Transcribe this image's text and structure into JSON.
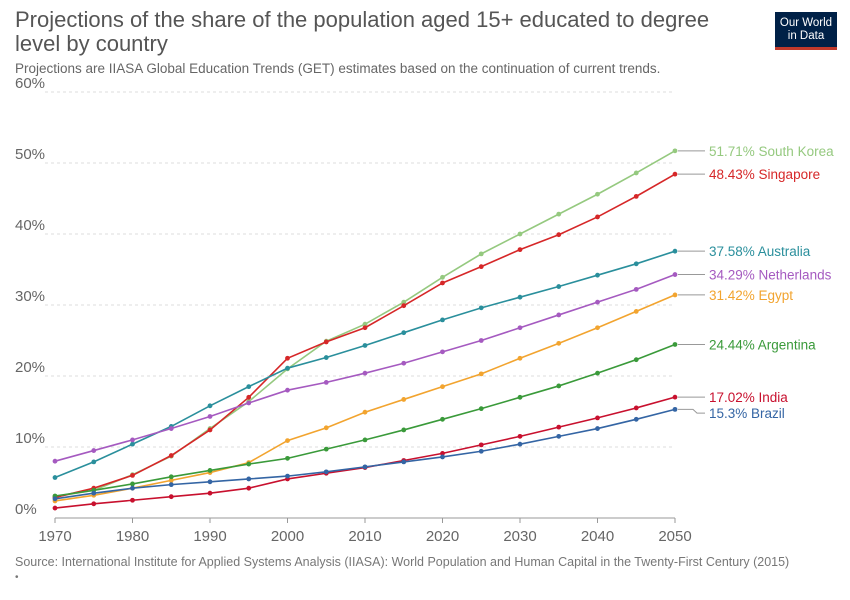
{
  "header": {
    "title": "Projections of the share of the population aged 15+ educated to degree level by country",
    "subtitle": "Projections are IIASA Global Education Trends (GET) estimates based on the continuation of current trends.",
    "logo_text": "Our World in Data",
    "logo_bg": "#002147",
    "logo_accent": "#c0392b"
  },
  "footer": {
    "source": "Source: International Institute for Applied Systems Analysis (IIASA): World Population and Human Capital in the Twenty-First Century (2015)",
    "bullet": "•"
  },
  "chart_data": {
    "type": "line",
    "title": "Projections of the share of the population aged 15+ educated to degree level by country",
    "x": [
      1970,
      1975,
      1980,
      1985,
      1990,
      1995,
      2000,
      2005,
      2010,
      2015,
      2020,
      2025,
      2030,
      2035,
      2040,
      2045,
      2050
    ],
    "xticks": [
      1970,
      1980,
      1990,
      2000,
      2010,
      2020,
      2030,
      2040,
      2050
    ],
    "xlim": [
      1970,
      2050
    ],
    "ylim": [
      0,
      60
    ],
    "yticks": [
      0,
      10,
      20,
      30,
      40,
      50,
      60
    ],
    "ytick_labels": [
      "0%",
      "10%",
      "20%",
      "30%",
      "40%",
      "50%",
      "60%"
    ],
    "grid": true,
    "legend": "end-of-line labels",
    "series": [
      {
        "name": "South Korea",
        "end_label": "51.71% South Korea",
        "color": "#95c97f",
        "values": [
          3.0,
          3.9,
          6.1,
          8.7,
          12.6,
          16.4,
          21.0,
          24.9,
          27.3,
          30.4,
          33.9,
          37.2,
          40.0,
          42.8,
          45.6,
          48.6,
          51.71
        ]
      },
      {
        "name": "Singapore",
        "end_label": "48.43% Singapore",
        "color": "#d62728",
        "values": [
          2.9,
          4.2,
          6.0,
          8.8,
          12.4,
          17.0,
          22.5,
          24.8,
          26.8,
          29.9,
          33.1,
          35.4,
          37.8,
          39.9,
          42.4,
          45.3,
          48.43
        ]
      },
      {
        "name": "Australia",
        "end_label": "37.58% Australia",
        "color": "#2a8f9c",
        "values": [
          5.7,
          7.9,
          10.4,
          12.9,
          15.8,
          18.5,
          21.1,
          22.6,
          24.3,
          26.1,
          27.9,
          29.6,
          31.1,
          32.6,
          34.2,
          35.8,
          37.58
        ]
      },
      {
        "name": "Netherlands",
        "end_label": "34.29% Netherlands",
        "color": "#a55ac0",
        "values": [
          8.0,
          9.5,
          11.0,
          12.6,
          14.3,
          16.2,
          18.0,
          19.1,
          20.4,
          21.8,
          23.4,
          25.0,
          26.8,
          28.6,
          30.4,
          32.2,
          34.29
        ]
      },
      {
        "name": "Egypt",
        "end_label": "31.42% Egypt",
        "color": "#f2a42f",
        "values": [
          2.4,
          3.2,
          4.2,
          5.3,
          6.4,
          7.8,
          10.9,
          12.7,
          14.9,
          16.7,
          18.5,
          20.3,
          22.5,
          24.6,
          26.8,
          29.1,
          31.42
        ]
      },
      {
        "name": "Argentina",
        "end_label": "24.44% Argentina",
        "color": "#3a9a3a",
        "values": [
          3.1,
          3.9,
          4.8,
          5.8,
          6.7,
          7.6,
          8.4,
          9.7,
          11.0,
          12.4,
          13.9,
          15.4,
          17.0,
          18.6,
          20.4,
          22.3,
          24.44
        ]
      },
      {
        "name": "India",
        "end_label": "17.02% India",
        "color": "#c8102e",
        "values": [
          1.4,
          2.0,
          2.5,
          3.0,
          3.5,
          4.2,
          5.5,
          6.3,
          7.1,
          8.1,
          9.1,
          10.3,
          11.5,
          12.8,
          14.1,
          15.5,
          17.02
        ]
      },
      {
        "name": "Brazil",
        "end_label": "15.3% Brazil",
        "color": "#3465a4",
        "values": [
          2.7,
          3.5,
          4.2,
          4.7,
          5.1,
          5.5,
          5.9,
          6.5,
          7.2,
          7.9,
          8.6,
          9.4,
          10.4,
          11.5,
          12.6,
          13.9,
          15.3
        ]
      }
    ]
  }
}
